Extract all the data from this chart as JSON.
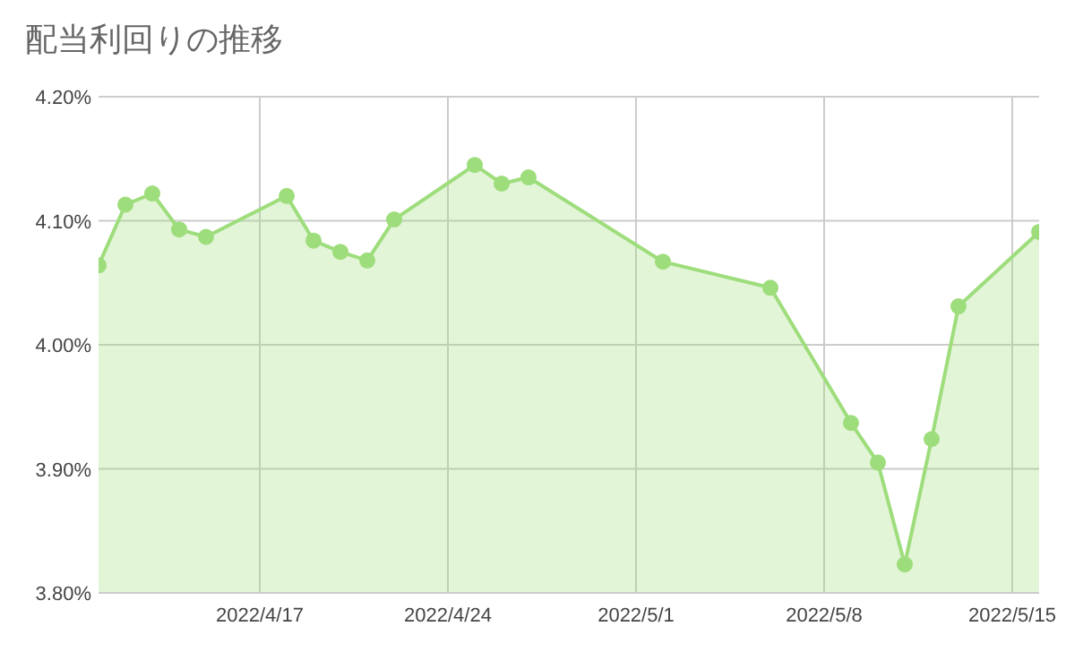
{
  "chart_data": {
    "type": "area",
    "title": "配当利回りの推移",
    "x": [
      "2022-04-11",
      "2022-04-12",
      "2022-04-13",
      "2022-04-14",
      "2022-04-15",
      "2022-04-18",
      "2022-04-19",
      "2022-04-20",
      "2022-04-21",
      "2022-04-22",
      "2022-04-25",
      "2022-04-26",
      "2022-04-27",
      "2022-05-02",
      "2022-05-06",
      "2022-05-09",
      "2022-05-10",
      "2022-05-11",
      "2022-05-12",
      "2022-05-13",
      "2022-05-16"
    ],
    "series": [
      {
        "color": "#9edd7c",
        "values": [
          4.064,
          4.113,
          4.122,
          4.093,
          4.087,
          4.12,
          4.084,
          4.075,
          4.068,
          4.101,
          4.145,
          4.13,
          4.135,
          4.067,
          4.046,
          3.937,
          3.905,
          3.823,
          3.924,
          4.031,
          4.091
        ]
      }
    ],
    "xlim": [
      "2022-04-11",
      "2022-05-16"
    ],
    "xticks": [
      {
        "value": "2022-04-17",
        "label": "2022/4/17"
      },
      {
        "value": "2022-04-24",
        "label": "2022/4/24"
      },
      {
        "value": "2022-05-01",
        "label": "2022/5/1"
      },
      {
        "value": "2022-05-08",
        "label": "2022/5/8"
      },
      {
        "value": "2022-05-15",
        "label": "2022/5/15"
      }
    ],
    "ylim": [
      3.8,
      4.2
    ],
    "yticks": [
      {
        "value": 3.8,
        "label": "3.80%"
      },
      {
        "value": 3.9,
        "label": "3.90%"
      },
      {
        "value": 4.0,
        "label": "4.00%"
      },
      {
        "value": 4.1,
        "label": "4.10%"
      },
      {
        "value": 4.2,
        "label": "4.20%"
      }
    ],
    "grid": true,
    "marker": "circle",
    "line_style": "solid"
  }
}
